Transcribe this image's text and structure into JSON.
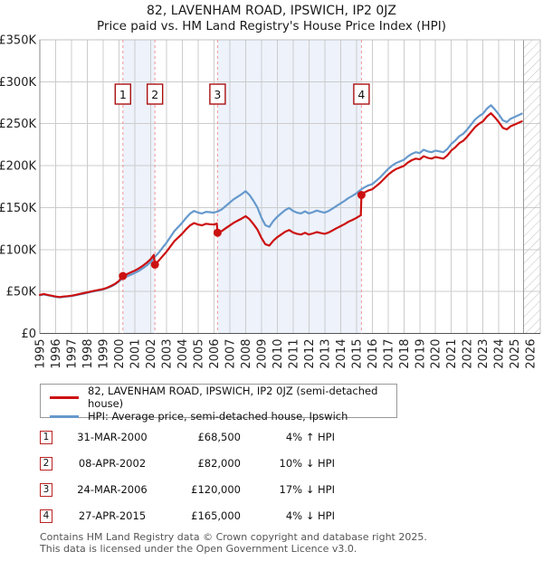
{
  "header": {
    "title": "82, LAVENHAM ROAD, IPSWICH, IP2 0JZ",
    "subtitle": "Price paid vs. HM Land Registry's House Price Index (HPI)"
  },
  "legend": {
    "items": [
      {
        "label": "82, LAVENHAM ROAD, IPSWICH, IP2 0JZ (semi-detached house)",
        "color": "#cc1111"
      },
      {
        "label": "HPI: Average price, semi-detached house, Ipswich",
        "color": "#6699cc"
      }
    ]
  },
  "transactions": [
    {
      "num": "1",
      "date": "31-MAR-2000",
      "price": "£68,500",
      "hpi": "4% ↑ HPI"
    },
    {
      "num": "2",
      "date": "08-APR-2002",
      "price": "£82,000",
      "hpi": "10% ↓ HPI"
    },
    {
      "num": "3",
      "date": "24-MAR-2006",
      "price": "£120,000",
      "hpi": "17% ↓ HPI"
    },
    {
      "num": "4",
      "date": "27-APR-2015",
      "price": "£165,000",
      "hpi": "4% ↓ HPI"
    }
  ],
  "footer": {
    "line1": "Contains HM Land Registry data © Crown copyright and database right 2025.",
    "line2": "This data is licensed under the Open Government Licence v3.0."
  },
  "chart_data": {
    "type": "line",
    "title": "82, LAVENHAM ROAD, IPSWICH, IP2 0JZ",
    "subtitle": "Price paid vs. HM Land Registry's House Price Index (HPI)",
    "x_axis": {
      "min": 1995,
      "grid_max": 2026,
      "tick_labels": [
        "1995",
        "1996",
        "1997",
        "1998",
        "1999",
        "2000",
        "2001",
        "2002",
        "2003",
        "2004",
        "2005",
        "2006",
        "2007",
        "2008",
        "2009",
        "2010",
        "2011",
        "2012",
        "2013",
        "2014",
        "2015",
        "2016",
        "2017",
        "2018",
        "2019",
        "2020",
        "2021",
        "2022",
        "2023",
        "2024",
        "2025",
        "2026"
      ]
    },
    "y_axis": {
      "min": 0,
      "max": 350,
      "tick_step": 50,
      "tick_labels": [
        "£0",
        "£50K",
        "£100K",
        "£150K",
        "£200K",
        "£250K",
        "£300K",
        "£350K"
      ]
    },
    "units": "GBP thousands",
    "series": [
      {
        "name": "HPI: Average price, semi-detached house, Ipswich",
        "color": "#6699cc",
        "points": [
          [
            1995.0,
            45.5
          ],
          [
            1995.25,
            46.5
          ],
          [
            1995.5,
            45.5
          ],
          [
            1995.75,
            44.5
          ],
          [
            1996.0,
            43.5
          ],
          [
            1996.25,
            43
          ],
          [
            1996.5,
            43.5
          ],
          [
            1996.75,
            44
          ],
          [
            1997.0,
            44.5
          ],
          [
            1997.25,
            45.5
          ],
          [
            1997.5,
            46.5
          ],
          [
            1997.75,
            47.5
          ],
          [
            1998.0,
            48.5
          ],
          [
            1998.25,
            49.5
          ],
          [
            1998.5,
            50.5
          ],
          [
            1998.75,
            51.5
          ],
          [
            1999.0,
            52.5
          ],
          [
            1999.25,
            54
          ],
          [
            1999.5,
            56
          ],
          [
            1999.75,
            58.5
          ],
          [
            2000.0,
            62
          ],
          [
            2000.25,
            65.9
          ],
          [
            2000.5,
            68
          ],
          [
            2000.75,
            70
          ],
          [
            2001.0,
            72
          ],
          [
            2001.25,
            74.5
          ],
          [
            2001.5,
            77.5
          ],
          [
            2001.75,
            81
          ],
          [
            2002.0,
            85
          ],
          [
            2002.25,
            91
          ],
          [
            2002.5,
            96
          ],
          [
            2002.75,
            102
          ],
          [
            2003.0,
            108
          ],
          [
            2003.25,
            115
          ],
          [
            2003.5,
            122
          ],
          [
            2003.75,
            127
          ],
          [
            2004.0,
            132
          ],
          [
            2004.25,
            138
          ],
          [
            2004.5,
            143
          ],
          [
            2004.75,
            146
          ],
          [
            2005.0,
            144
          ],
          [
            2005.25,
            143
          ],
          [
            2005.5,
            145
          ],
          [
            2005.75,
            144.5
          ],
          [
            2006.0,
            144
          ],
          [
            2006.25,
            145.5
          ],
          [
            2006.5,
            148
          ],
          [
            2006.75,
            152
          ],
          [
            2007.0,
            156
          ],
          [
            2007.25,
            160
          ],
          [
            2007.5,
            163
          ],
          [
            2007.75,
            166
          ],
          [
            2008.0,
            169.5
          ],
          [
            2008.25,
            165
          ],
          [
            2008.5,
            158
          ],
          [
            2008.75,
            150
          ],
          [
            2009.0,
            138
          ],
          [
            2009.25,
            129
          ],
          [
            2009.5,
            127
          ],
          [
            2009.75,
            134
          ],
          [
            2010.0,
            139
          ],
          [
            2010.25,
            143
          ],
          [
            2010.5,
            147
          ],
          [
            2010.75,
            149.5
          ],
          [
            2011.0,
            146
          ],
          [
            2011.25,
            144
          ],
          [
            2011.5,
            143
          ],
          [
            2011.75,
            145.5
          ],
          [
            2012.0,
            143
          ],
          [
            2012.25,
            144.5
          ],
          [
            2012.5,
            146.5
          ],
          [
            2012.75,
            145
          ],
          [
            2013.0,
            144
          ],
          [
            2013.25,
            146
          ],
          [
            2013.5,
            149
          ],
          [
            2013.75,
            152
          ],
          [
            2014.0,
            155
          ],
          [
            2014.25,
            158
          ],
          [
            2014.5,
            161.5
          ],
          [
            2014.75,
            164
          ],
          [
            2015.0,
            167
          ],
          [
            2015.25,
            171
          ],
          [
            2015.5,
            174
          ],
          [
            2015.75,
            176.5
          ],
          [
            2016.0,
            178
          ],
          [
            2016.25,
            182
          ],
          [
            2016.5,
            186
          ],
          [
            2016.75,
            191
          ],
          [
            2017.0,
            196
          ],
          [
            2017.25,
            200
          ],
          [
            2017.5,
            203
          ],
          [
            2017.75,
            205
          ],
          [
            2018.0,
            207
          ],
          [
            2018.25,
            211
          ],
          [
            2018.5,
            214
          ],
          [
            2018.75,
            216
          ],
          [
            2019.0,
            215
          ],
          [
            2019.25,
            219
          ],
          [
            2019.5,
            217
          ],
          [
            2019.75,
            216
          ],
          [
            2020.0,
            218
          ],
          [
            2020.25,
            217
          ],
          [
            2020.5,
            216
          ],
          [
            2020.75,
            220
          ],
          [
            2021.0,
            226
          ],
          [
            2021.25,
            230
          ],
          [
            2021.5,
            235
          ],
          [
            2021.75,
            238
          ],
          [
            2022.0,
            243
          ],
          [
            2022.25,
            249
          ],
          [
            2022.5,
            255
          ],
          [
            2022.75,
            259
          ],
          [
            2023.0,
            262
          ],
          [
            2023.25,
            268
          ],
          [
            2023.5,
            272
          ],
          [
            2023.75,
            267
          ],
          [
            2024.0,
            261
          ],
          [
            2024.25,
            254
          ],
          [
            2024.5,
            252
          ],
          [
            2024.75,
            256
          ],
          [
            2025.0,
            258
          ],
          [
            2025.45,
            262
          ]
        ]
      },
      {
        "name": "82, LAVENHAM ROAD, IPSWICH, IP2 0JZ (semi-detached house)",
        "color": "#cc1111",
        "points": [
          [
            1995.0,
            46
          ],
          [
            1995.25,
            47
          ],
          [
            1995.5,
            46
          ],
          [
            1995.75,
            45
          ],
          [
            1996.0,
            44
          ],
          [
            1996.25,
            43.4
          ],
          [
            1996.5,
            44
          ],
          [
            1996.75,
            44.4
          ],
          [
            1997.0,
            45
          ],
          [
            1997.25,
            46
          ],
          [
            1997.5,
            47
          ],
          [
            1997.75,
            48
          ],
          [
            1998.0,
            49
          ],
          [
            1998.25,
            50
          ],
          [
            1998.5,
            51
          ],
          [
            1998.75,
            52
          ],
          [
            1999.0,
            53
          ],
          [
            1999.25,
            54.5
          ],
          [
            1999.5,
            56.6
          ],
          [
            1999.75,
            59.1
          ],
          [
            2000.0,
            62.6
          ],
          [
            2000.25,
            68.5
          ],
          [
            2000.5,
            70.7
          ],
          [
            2000.75,
            72.8
          ],
          [
            2001.0,
            74.8
          ],
          [
            2001.25,
            77.4
          ],
          [
            2001.5,
            80.6
          ],
          [
            2001.75,
            84.2
          ],
          [
            2002.0,
            88.4
          ],
          [
            2002.2,
            93.5
          ],
          [
            2002.27,
            82
          ],
          [
            2002.5,
            86.5
          ],
          [
            2002.75,
            91.9
          ],
          [
            2003.0,
            97.3
          ],
          [
            2003.25,
            103.6
          ],
          [
            2003.5,
            110
          ],
          [
            2003.75,
            114.4
          ],
          [
            2004.0,
            119
          ],
          [
            2004.25,
            124.4
          ],
          [
            2004.5,
            128.9
          ],
          [
            2004.75,
            131.6
          ],
          [
            2005.0,
            129.8
          ],
          [
            2005.25,
            128.9
          ],
          [
            2005.5,
            130.7
          ],
          [
            2005.75,
            130.2
          ],
          [
            2006.0,
            129.8
          ],
          [
            2006.18,
            131
          ],
          [
            2006.23,
            120
          ],
          [
            2006.5,
            122.1
          ],
          [
            2006.75,
            125.4
          ],
          [
            2007.0,
            128.7
          ],
          [
            2007.25,
            131.9
          ],
          [
            2007.5,
            134.4
          ],
          [
            2007.75,
            136.9
          ],
          [
            2008.0,
            139.8
          ],
          [
            2008.25,
            136.1
          ],
          [
            2008.5,
            130.3
          ],
          [
            2008.75,
            123.7
          ],
          [
            2009.0,
            113.8
          ],
          [
            2009.25,
            106.4
          ],
          [
            2009.5,
            104.7
          ],
          [
            2009.75,
            110.5
          ],
          [
            2010.0,
            114.6
          ],
          [
            2010.25,
            117.9
          ],
          [
            2010.5,
            121.2
          ],
          [
            2010.75,
            123.3
          ],
          [
            2011.0,
            120.4
          ],
          [
            2011.25,
            118.8
          ],
          [
            2011.5,
            117.9
          ],
          [
            2011.75,
            120
          ],
          [
            2012.0,
            117.9
          ],
          [
            2012.25,
            119.2
          ],
          [
            2012.5,
            120.8
          ],
          [
            2012.75,
            119.6
          ],
          [
            2013.0,
            118.8
          ],
          [
            2013.25,
            120.4
          ],
          [
            2013.5,
            122.9
          ],
          [
            2013.75,
            125.4
          ],
          [
            2014.0,
            127.8
          ],
          [
            2014.25,
            130.3
          ],
          [
            2014.5,
            133.2
          ],
          [
            2014.75,
            135.3
          ],
          [
            2015.0,
            137.7
          ],
          [
            2015.28,
            141
          ],
          [
            2015.32,
            165
          ],
          [
            2015.5,
            167.9
          ],
          [
            2015.75,
            170.3
          ],
          [
            2016.0,
            171.8
          ],
          [
            2016.25,
            175.6
          ],
          [
            2016.5,
            179.5
          ],
          [
            2016.75,
            184.3
          ],
          [
            2017.0,
            189.1
          ],
          [
            2017.25,
            193
          ],
          [
            2017.5,
            195.9
          ],
          [
            2017.75,
            197.8
          ],
          [
            2018.0,
            199.7
          ],
          [
            2018.25,
            203.6
          ],
          [
            2018.5,
            206.5
          ],
          [
            2018.75,
            208.4
          ],
          [
            2019.0,
            207.5
          ],
          [
            2019.25,
            211.3
          ],
          [
            2019.5,
            209.4
          ],
          [
            2019.75,
            208.4
          ],
          [
            2020.0,
            210.3
          ],
          [
            2020.25,
            209.4
          ],
          [
            2020.5,
            208.4
          ],
          [
            2020.75,
            212.3
          ],
          [
            2021.0,
            218.1
          ],
          [
            2021.25,
            221.9
          ],
          [
            2021.5,
            226.8
          ],
          [
            2021.75,
            229.6
          ],
          [
            2022.0,
            234.5
          ],
          [
            2022.25,
            240.3
          ],
          [
            2022.5,
            246
          ],
          [
            2022.75,
            249.9
          ],
          [
            2023.0,
            252.8
          ],
          [
            2023.25,
            258.6
          ],
          [
            2023.5,
            262.5
          ],
          [
            2023.75,
            257.6
          ],
          [
            2024.0,
            251.8
          ],
          [
            2024.25,
            245.1
          ],
          [
            2024.5,
            243.2
          ],
          [
            2024.75,
            247
          ],
          [
            2025.0,
            249
          ],
          [
            2025.45,
            252.8
          ]
        ]
      }
    ],
    "sales": [
      {
        "n": "1",
        "year": 2000.25,
        "value": 68.5,
        "date": "31-MAR-2000",
        "price_label": "£68,500"
      },
      {
        "n": "2",
        "year": 2002.27,
        "value": 82,
        "date": "08-APR-2002",
        "price_label": "£82,000"
      },
      {
        "n": "3",
        "year": 2006.23,
        "value": 120,
        "date": "24-MAR-2006",
        "price_label": "£120,000"
      },
      {
        "n": "4",
        "year": 2015.32,
        "value": 165,
        "date": "27-APR-2015",
        "price_label": "£165,000"
      }
    ],
    "bands": [
      [
        2000.25,
        2002.27
      ],
      [
        2006.23,
        2015.32
      ]
    ],
    "hatch_from": 2025.55,
    "legend_position": "bottom",
    "grid": true,
    "colors": {
      "band": "#edf2fb",
      "grid": "#cccccc",
      "dash": "#f09898",
      "dot": "#cc1111",
      "marker_box_border": "#aa1111",
      "border": "#c0c0c0",
      "axis_bottom": "#555555",
      "axis_left": "#888888",
      "hatch": "#c0c0c0",
      "tick_text": "#222222"
    }
  }
}
